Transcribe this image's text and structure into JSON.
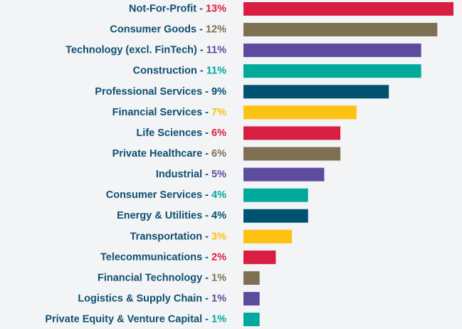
{
  "chart_data": {
    "type": "bar",
    "orientation": "horizontal",
    "categories": [
      "Not-For-Profit",
      "Consumer Goods",
      "Technology (excl. FinTech)",
      "Construction",
      "Professional Services",
      "Financial Services",
      "Life Sciences",
      "Private Healthcare",
      "Industrial",
      "Consumer Services",
      "Energy & Utilities",
      "Transportation",
      "Telecommunications",
      "Financial Technology",
      "Logistics & Supply Chain",
      "Private Equity & Venture Capital"
    ],
    "values": [
      13,
      12,
      11,
      11,
      9,
      7,
      6,
      6,
      5,
      4,
      4,
      3,
      2,
      1,
      1,
      1
    ],
    "value_labels": [
      "13%",
      "12%",
      "11%",
      "11%",
      "9%",
      "7%",
      "6%",
      "6%",
      "5%",
      "4%",
      "4%",
      "3%",
      "2%",
      "1%",
      "1%",
      "1%"
    ],
    "label_separator": " - ",
    "colors": [
      "#d81f42",
      "#7e7053",
      "#5d4b9e",
      "#00a99b",
      "#005271",
      "#fdc111",
      "#d81f42",
      "#7e7053",
      "#5d4b9e",
      "#00a99b",
      "#005271",
      "#fdc111",
      "#d81f42",
      "#7e7053",
      "#5d4b9e",
      "#00a99b"
    ]
  }
}
